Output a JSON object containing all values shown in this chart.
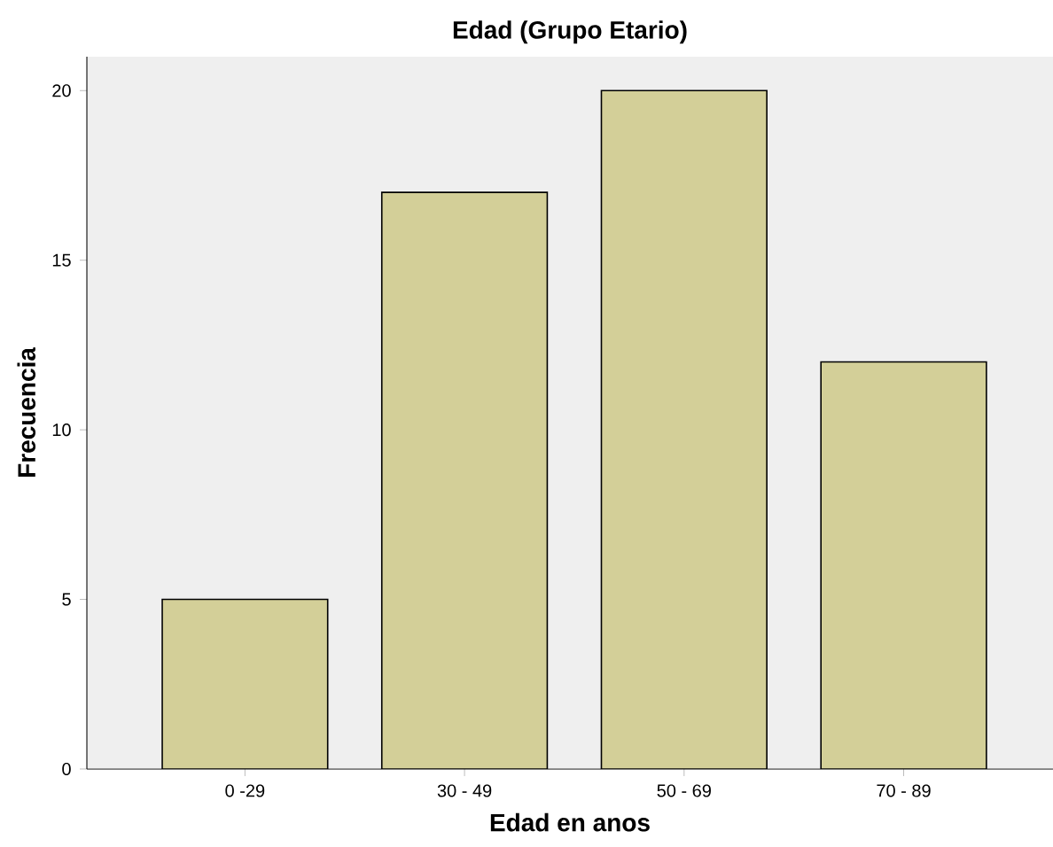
{
  "chart_data": {
    "type": "bar",
    "title": "Edad (Grupo Etario)",
    "xlabel": "Edad en anos",
    "ylabel": "Frecuencia",
    "categories": [
      "0 -29",
      "30 - 49",
      "50 - 69",
      "70 - 89"
    ],
    "values": [
      5,
      17,
      20,
      12
    ],
    "color": "#d3cf98",
    "ylim": [
      0,
      21
    ],
    "yticks": [
      0,
      5,
      10,
      15,
      20
    ],
    "grid": false
  }
}
